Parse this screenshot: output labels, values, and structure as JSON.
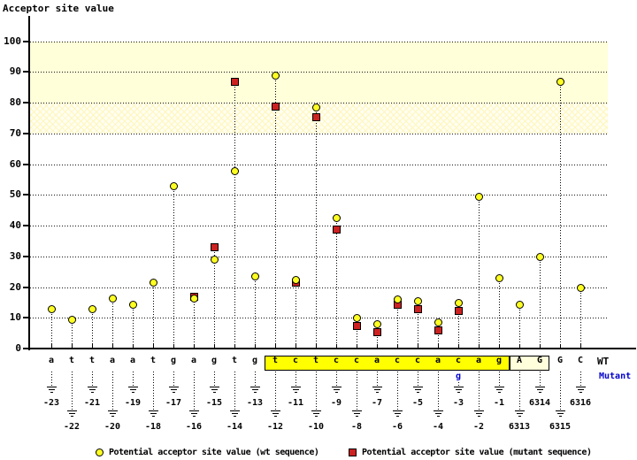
{
  "title": "Acceptor site value",
  "labels": {
    "wt": "WT",
    "mutant": "Mutant"
  },
  "legend": {
    "wt": "Potential acceptor site value (wt sequence)",
    "mutant": "Potential acceptor site value (mutant sequence)"
  },
  "colors": {
    "wt_marker": "#FFFF22",
    "mutant_marker": "#CC2222",
    "highlight_box": "#FFFF00",
    "ag_box": "#FFFFDC",
    "shaded_band": "#FFFFD9",
    "mutant_text": "#0000CC"
  },
  "chart_data": {
    "type": "scatter",
    "title": "Acceptor site value",
    "ylabel": "Acceptor site value",
    "ylim": [
      0,
      100
    ],
    "yticks": [
      0,
      10,
      20,
      30,
      40,
      50,
      60,
      70,
      80,
      90,
      100
    ],
    "grid": "horizontal-dotted",
    "legend_position": "bottom",
    "shaded_bands": [
      {
        "range": [
          80,
          100
        ],
        "style": "solid"
      },
      {
        "range": [
          70,
          80
        ],
        "style": "crosshatch"
      }
    ],
    "series": [
      {
        "name": "Potential acceptor site value (wt sequence)",
        "marker": "circle",
        "color": "#FFFF22"
      },
      {
        "name": "Potential acceptor site value (mutant sequence)",
        "marker": "square",
        "color": "#CC2222"
      }
    ],
    "highlight_box": {
      "from": "-12",
      "to": "-1"
    },
    "ag_box": {
      "from": "6313",
      "to": "6314"
    },
    "mutation": {
      "pos": "-3",
      "base": "g"
    },
    "points": [
      {
        "pos": "-23",
        "base": "a",
        "wt": 13,
        "mut": null
      },
      {
        "pos": "-22",
        "base": "t",
        "wt": 9.5,
        "mut": null
      },
      {
        "pos": "-21",
        "base": "t",
        "wt": 13,
        "mut": null
      },
      {
        "pos": "-20",
        "base": "a",
        "wt": 16.5,
        "mut": null
      },
      {
        "pos": "-19",
        "base": "a",
        "wt": 14.5,
        "mut": null
      },
      {
        "pos": "-18",
        "base": "t",
        "wt": 21.5,
        "mut": null
      },
      {
        "pos": "-17",
        "base": "g",
        "wt": 53,
        "mut": null
      },
      {
        "pos": "-16",
        "base": "a",
        "wt": 16.5,
        "mut": 17
      },
      {
        "pos": "-15",
        "base": "g",
        "wt": 29,
        "mut": 33
      },
      {
        "pos": "-14",
        "base": "t",
        "wt": 58,
        "mut": 87
      },
      {
        "pos": "-13",
        "base": "g",
        "wt": 23.5,
        "mut": null
      },
      {
        "pos": "-12",
        "base": "t",
        "wt": 89,
        "mut": 79
      },
      {
        "pos": "-11",
        "base": "c",
        "wt": 22.5,
        "mut": 21.5
      },
      {
        "pos": "-10",
        "base": "t",
        "wt": 78.5,
        "mut": 75.5
      },
      {
        "pos": "-9",
        "base": "c",
        "wt": 42.5,
        "mut": 39
      },
      {
        "pos": "-8",
        "base": "c",
        "wt": 10,
        "mut": 7.5
      },
      {
        "pos": "-7",
        "base": "a",
        "wt": 8,
        "mut": 5.5
      },
      {
        "pos": "-6",
        "base": "c",
        "wt": 16,
        "mut": 14.5
      },
      {
        "pos": "-5",
        "base": "c",
        "wt": 15.5,
        "mut": 13
      },
      {
        "pos": "-4",
        "base": "a",
        "wt": 8.5,
        "mut": 6
      },
      {
        "pos": "-3",
        "base": "c",
        "wt": 15,
        "mut": 12.5
      },
      {
        "pos": "-2",
        "base": "a",
        "wt": 49.5,
        "mut": null
      },
      {
        "pos": "-1",
        "base": "g",
        "wt": 23,
        "mut": null
      },
      {
        "pos": "6313",
        "base": "A",
        "wt": 14.5,
        "mut": null
      },
      {
        "pos": "6314",
        "base": "G",
        "wt": 30,
        "mut": null
      },
      {
        "pos": "6315",
        "base": "G",
        "wt": 87,
        "mut": null
      },
      {
        "pos": "6316",
        "base": "C",
        "wt": 20,
        "mut": null
      }
    ]
  }
}
